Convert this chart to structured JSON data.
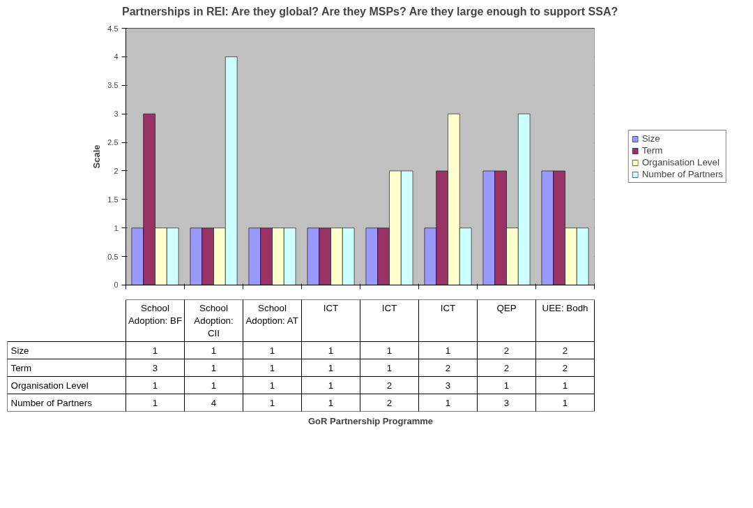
{
  "chart_data": {
    "type": "bar",
    "title": "Partnerships in REI: Are they global? Are they MSPs? Are they large enough to support SSA?",
    "annotations": [
      "GoR Partnership Programme"
    ],
    "ylabel": "Scale",
    "categories": [
      "School Adoption: BF",
      "School Adoption: CII",
      "School Adoption: AT",
      "ICT",
      "ICT",
      "ICT",
      "QEP",
      "UEE: Bodh"
    ],
    "series": [
      {
        "name": "Size",
        "color": "#9999ff",
        "values": [
          1,
          1,
          1,
          1,
          1,
          1,
          2,
          2
        ]
      },
      {
        "name": "Term",
        "color": "#993366",
        "values": [
          3,
          1,
          1,
          1,
          1,
          2,
          2,
          2
        ]
      },
      {
        "name": "Organisation Level",
        "color": "#ffffcc",
        "values": [
          1,
          1,
          1,
          1,
          2,
          3,
          1,
          1
        ]
      },
      {
        "name": "Number of Partners",
        "color": "#ccffff",
        "values": [
          1,
          4,
          1,
          1,
          2,
          1,
          3,
          1
        ]
      }
    ],
    "ylim": [
      0,
      4.5
    ],
    "yticks": [
      0,
      0.5,
      1,
      1.5,
      2,
      2.5,
      3,
      3.5,
      4,
      4.5
    ],
    "grid": "y",
    "legend": "right",
    "data_labels": true
  }
}
